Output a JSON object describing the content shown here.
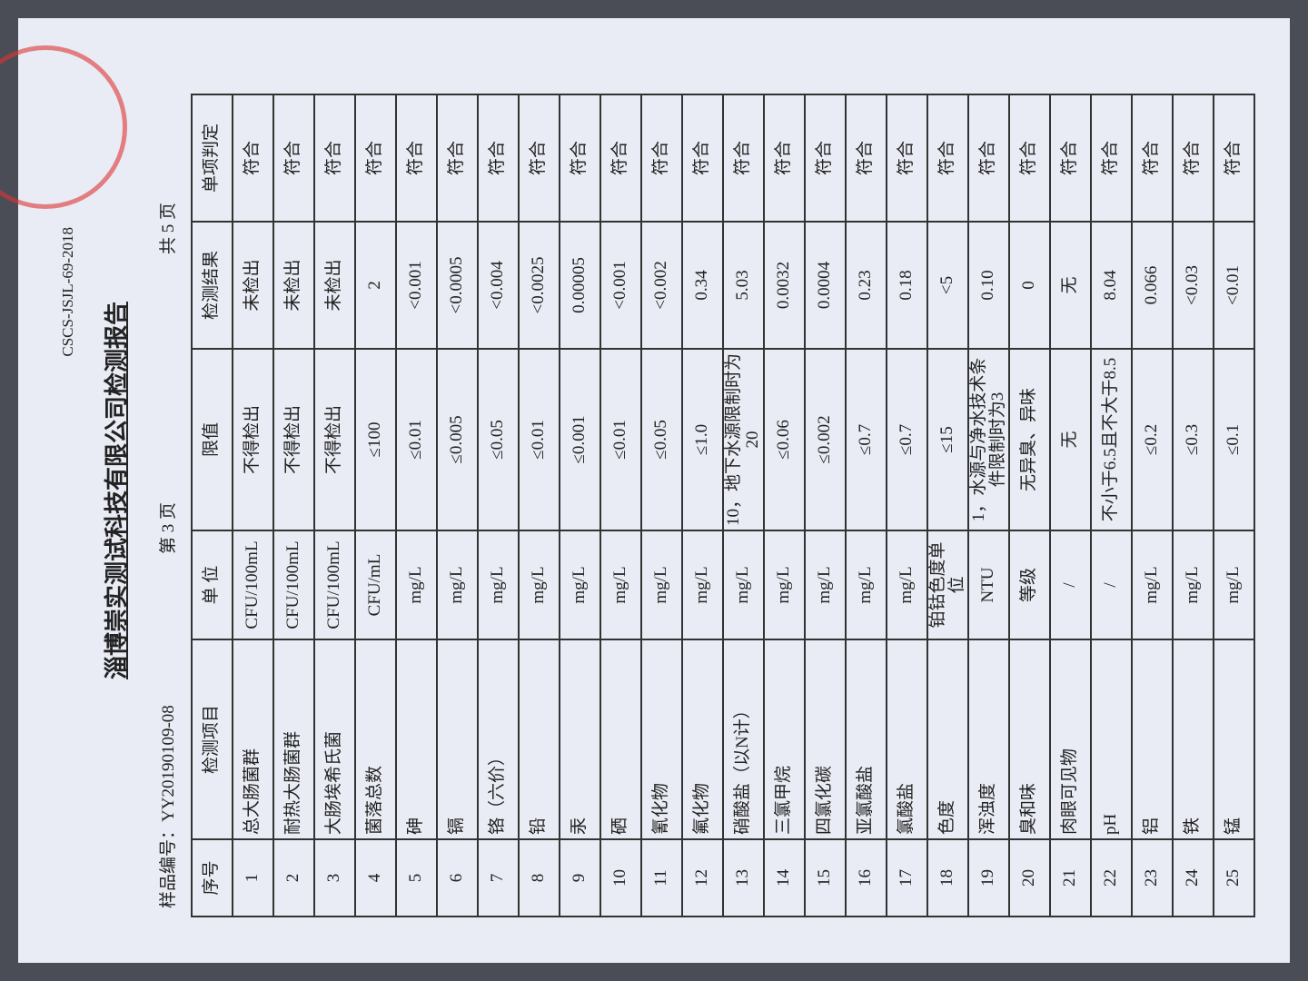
{
  "header": {
    "code": "CSCS-JSJL-69-2018",
    "title": "淄博崇实测试科技有限公司检测报告",
    "sample_no": "样品编号：YY20190109-08",
    "page": "第 3 页",
    "total": "共 5 页"
  },
  "table": {
    "columns": [
      "序号",
      "检测项目",
      "单 位",
      "限值",
      "检测结果",
      "单项判定"
    ],
    "rows": [
      [
        "1",
        "总大肠菌群",
        "CFU/100mL",
        "不得检出",
        "未检出",
        "符合"
      ],
      [
        "2",
        "耐热大肠菌群",
        "CFU/100mL",
        "不得检出",
        "未检出",
        "符合"
      ],
      [
        "3",
        "大肠埃希氏菌",
        "CFU/100mL",
        "不得检出",
        "未检出",
        "符合"
      ],
      [
        "4",
        "菌落总数",
        "CFU/mL",
        "≤100",
        "2",
        "符合"
      ],
      [
        "5",
        "砷",
        "mg/L",
        "≤0.01",
        "<0.001",
        "符合"
      ],
      [
        "6",
        "镉",
        "mg/L",
        "≤0.005",
        "<0.0005",
        "符合"
      ],
      [
        "7",
        "铬（六价）",
        "mg/L",
        "≤0.05",
        "<0.004",
        "符合"
      ],
      [
        "8",
        "铅",
        "mg/L",
        "≤0.01",
        "<0.0025",
        "符合"
      ],
      [
        "9",
        "汞",
        "mg/L",
        "≤0.001",
        "0.00005",
        "符合"
      ],
      [
        "10",
        "硒",
        "mg/L",
        "≤0.01",
        "<0.001",
        "符合"
      ],
      [
        "11",
        "氰化物",
        "mg/L",
        "≤0.05",
        "<0.002",
        "符合"
      ],
      [
        "12",
        "氟化物",
        "mg/L",
        "≤1.0",
        "0.34",
        "符合"
      ],
      [
        "13",
        "硝酸盐（以N计）",
        "mg/L",
        "10，地下水源限制时为20",
        "5.03",
        "符合"
      ],
      [
        "14",
        "三氯甲烷",
        "mg/L",
        "≤0.06",
        "0.0032",
        "符合"
      ],
      [
        "15",
        "四氯化碳",
        "mg/L",
        "≤0.002",
        "0.0004",
        "符合"
      ],
      [
        "16",
        "亚氯酸盐",
        "mg/L",
        "≤0.7",
        "0.23",
        "符合"
      ],
      [
        "17",
        "氯酸盐",
        "mg/L",
        "≤0.7",
        "0.18",
        "符合"
      ],
      [
        "18",
        "色度",
        "铂钴色度单位",
        "≤15",
        "<5",
        "符合"
      ],
      [
        "19",
        "浑浊度",
        "NTU",
        "1，水源与净水技术条件限制时为3",
        "0.10",
        "符合"
      ],
      [
        "20",
        "臭和味",
        "等级",
        "无异臭、异味",
        "0",
        "符合"
      ],
      [
        "21",
        "肉眼可见物",
        "/",
        "无",
        "无",
        "符合"
      ],
      [
        "22",
        "pH",
        "/",
        "不小于6.5且不大于8.5",
        "8.04",
        "符合"
      ],
      [
        "23",
        "铝",
        "mg/L",
        "≤0.2",
        "0.066",
        "符合"
      ],
      [
        "24",
        "铁",
        "mg/L",
        "≤0.3",
        "<0.03",
        "符合"
      ],
      [
        "25",
        "锰",
        "mg/L",
        "≤0.1",
        "<0.01",
        "符合"
      ]
    ]
  }
}
